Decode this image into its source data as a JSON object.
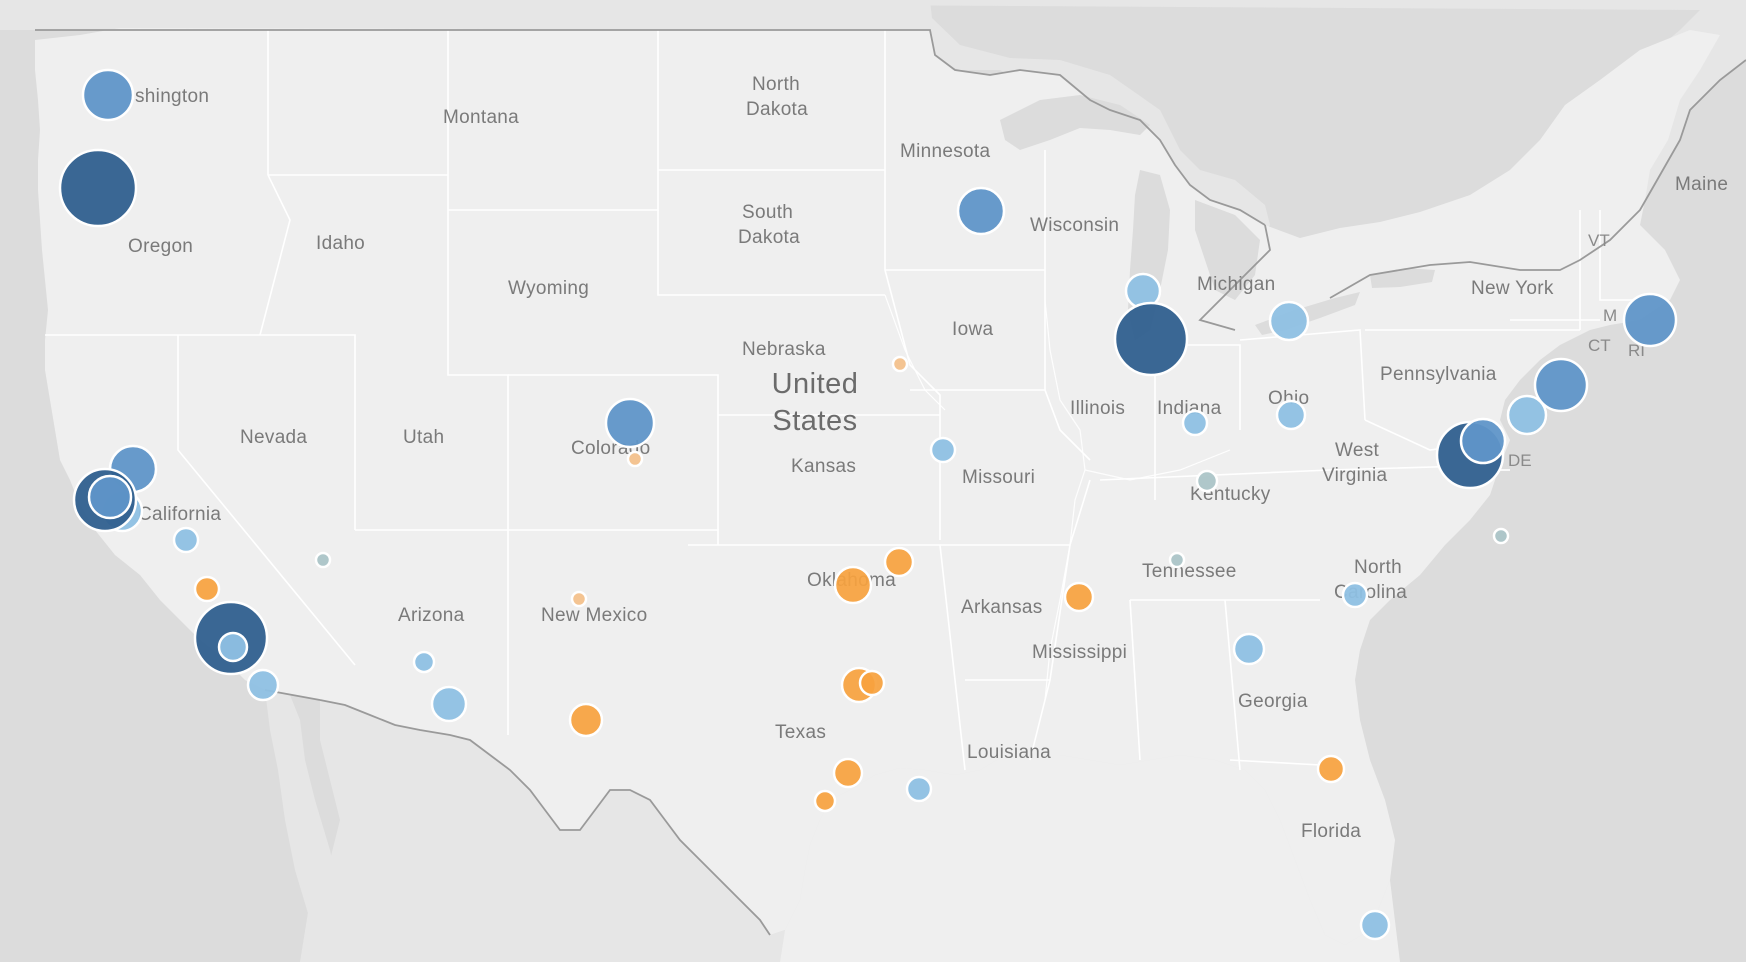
{
  "map": {
    "country_label": [
      "United",
      "States"
    ],
    "colors": {
      "land": "#efefef",
      "neighbors": "#e6e6e6",
      "water": "#dcdcdc",
      "borders": "#ffffff",
      "country_border": "#9a9a9a",
      "blue_dark": "#2f5f8e",
      "blue_mid": "#5f95c8",
      "blue_light": "#8ec0e3",
      "orange": "#f7a23e",
      "orange_light": "#f4c08a",
      "gray_small": "#a9c3c7"
    },
    "state_labels": {
      "washington": "shington",
      "oregon": "Oregon",
      "idaho": "Idaho",
      "montana": "Montana",
      "north_dakota": [
        "North",
        "Dakota"
      ],
      "south_dakota": [
        "South",
        "Dakota"
      ],
      "minnesota": "Minnesota",
      "wisconsin": "Wisconsin",
      "michigan": "Michigan",
      "maine": "Maine",
      "vt": "VT",
      "ma": "M",
      "ct": "CT",
      "ri": "RI",
      "new_york": "New York",
      "pennsylvania": "Pennsylvania",
      "ohio": "Ohio",
      "indiana": "Indiana",
      "illinois": "Illinois",
      "iowa": "Iowa",
      "nebraska": "Nebraska",
      "wyoming": "Wyoming",
      "nevada": "Nevada",
      "utah": "Utah",
      "colorado": "Colorado",
      "kansas": "Kansas",
      "missouri": "Missouri",
      "kentucky": "Kentucky",
      "west_virginia": [
        "West",
        "Virginia"
      ],
      "de": "DE",
      "california": "California",
      "arizona": "Arizona",
      "new_mexico": "New Mexico",
      "oklahoma": "Oklahoma",
      "arkansas": "Arkansas",
      "tennessee": "Tennessee",
      "north_carolina": [
        "North",
        "Carolina"
      ],
      "mississippi": "Mississippi",
      "georgia": "Georgia",
      "texas": "Texas",
      "louisiana": "Louisiana",
      "florida": "Florida"
    },
    "markers": [
      {
        "name": "seattle",
        "color": "blue_mid",
        "size": "medium"
      },
      {
        "name": "portland",
        "color": "blue_dark",
        "size": "xlarge"
      },
      {
        "name": "sacramento",
        "color": "blue_mid",
        "size": "medium"
      },
      {
        "name": "san-francisco",
        "color": "blue_dark",
        "size": "large"
      },
      {
        "name": "oakland",
        "color": "blue_mid",
        "size": "medium"
      },
      {
        "name": "san-jose",
        "color": "blue_light",
        "size": "medium"
      },
      {
        "name": "fresno",
        "color": "blue_light",
        "size": "small"
      },
      {
        "name": "bakersfield",
        "color": "orange",
        "size": "small"
      },
      {
        "name": "los-angeles",
        "color": "blue_dark",
        "size": "xlarge"
      },
      {
        "name": "long-beach",
        "color": "blue_light",
        "size": "small"
      },
      {
        "name": "san-diego",
        "color": "blue_light",
        "size": "small"
      },
      {
        "name": "las-vegas",
        "color": "gray_small",
        "size": "tiny"
      },
      {
        "name": "mesa",
        "color": "blue_light",
        "size": "tiny"
      },
      {
        "name": "tucson",
        "color": "blue_light",
        "size": "small"
      },
      {
        "name": "albuquerque",
        "color": "orange_light",
        "size": "tiny"
      },
      {
        "name": "el-paso",
        "color": "orange",
        "size": "small"
      },
      {
        "name": "denver",
        "color": "blue_mid",
        "size": "medium"
      },
      {
        "name": "colorado-springs",
        "color": "orange_light",
        "size": "tiny"
      },
      {
        "name": "omaha",
        "color": "orange_light",
        "size": "tiny"
      },
      {
        "name": "kansas-city",
        "color": "blue_light",
        "size": "small"
      },
      {
        "name": "tulsa",
        "color": "orange",
        "size": "small"
      },
      {
        "name": "oklahoma-city",
        "color": "orange",
        "size": "medium"
      },
      {
        "name": "fort-worth",
        "color": "orange",
        "size": "medium"
      },
      {
        "name": "dallas",
        "color": "orange",
        "size": "small"
      },
      {
        "name": "austin",
        "color": "orange",
        "size": "small"
      },
      {
        "name": "san-antonio",
        "color": "orange",
        "size": "tiny"
      },
      {
        "name": "houston",
        "color": "blue_light",
        "size": "small"
      },
      {
        "name": "minneapolis",
        "color": "blue_mid",
        "size": "medium"
      },
      {
        "name": "milwaukee",
        "color": "blue_light",
        "size": "small"
      },
      {
        "name": "chicago",
        "color": "blue_dark",
        "size": "xlarge"
      },
      {
        "name": "detroit",
        "color": "blue_light",
        "size": "small"
      },
      {
        "name": "indianapolis",
        "color": "blue_light",
        "size": "small"
      },
      {
        "name": "columbus",
        "color": "blue_light",
        "size": "small"
      },
      {
        "name": "louisville",
        "color": "gray_small",
        "size": "tiny"
      },
      {
        "name": "memphis",
        "color": "orange",
        "size": "small"
      },
      {
        "name": "nashville",
        "color": "gray_small",
        "size": "tiny"
      },
      {
        "name": "atlanta",
        "color": "blue_light",
        "size": "small"
      },
      {
        "name": "charlotte",
        "color": "blue_light",
        "size": "small"
      },
      {
        "name": "jacksonville",
        "color": "orange",
        "size": "small"
      },
      {
        "name": "miami",
        "color": "blue_light",
        "size": "small"
      },
      {
        "name": "washington-dc",
        "color": "blue_dark",
        "size": "large"
      },
      {
        "name": "baltimore",
        "color": "blue_mid",
        "size": "medium"
      },
      {
        "name": "philadelphia",
        "color": "blue_light",
        "size": "medium"
      },
      {
        "name": "new-york-city",
        "color": "blue_mid",
        "size": "large"
      },
      {
        "name": "virginia-beach",
        "color": "gray_small",
        "size": "tiny"
      },
      {
        "name": "boston",
        "color": "blue_mid",
        "size": "large"
      }
    ]
  }
}
